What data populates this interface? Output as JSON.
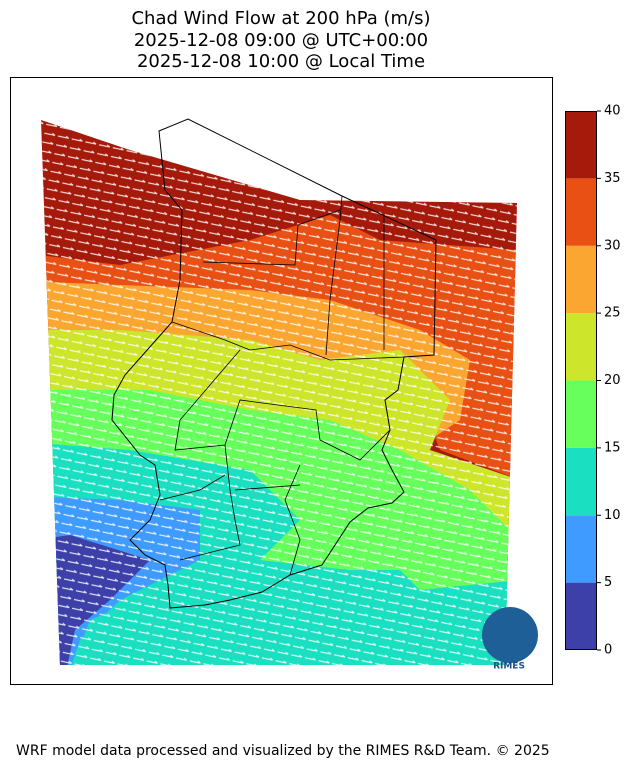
{
  "title": [
    "Chad Wind Flow at 200 hPa (m/s)",
    "2025-12-08 09:00 @ UTC+00:00",
    "2025-12-08 10:00 @ Local Time"
  ],
  "colorbar": {
    "ticks": [
      0,
      5,
      10,
      15,
      20,
      25,
      30,
      35,
      40
    ],
    "colors": [
      "#3d40a8",
      "#3f9bff",
      "#1adfc0",
      "#66ff5b",
      "#cde52a",
      "#fca632",
      "#e85014",
      "#a51a0b"
    ]
  },
  "logo": "RIMES",
  "footer": "WRF model data processed and visualized by the RIMES R&D Team. © 2025"
}
